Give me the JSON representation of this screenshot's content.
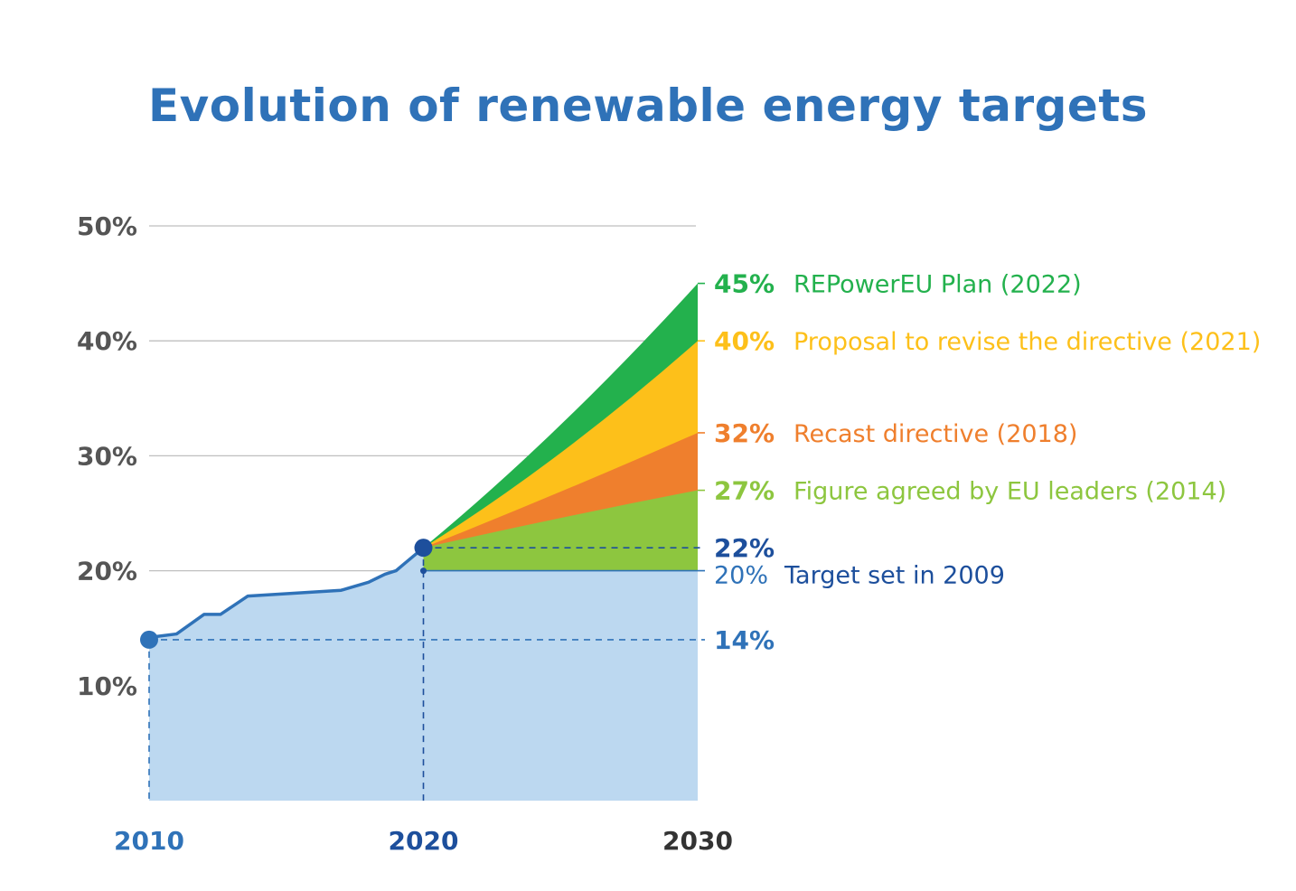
{
  "title": "Evolution of renewable energy targets",
  "chart_data": {
    "type": "area",
    "ylim": [
      0,
      50
    ],
    "xlim": [
      2010,
      2030
    ],
    "y_ticks": [
      "10%",
      "20%",
      "30%",
      "40%",
      "50%"
    ],
    "y_tick_values": [
      10,
      20,
      30,
      40,
      50
    ],
    "x_ticks": [
      "2010",
      "2020",
      "2030"
    ],
    "x_tick_values": [
      2010,
      2020,
      2030
    ],
    "grid": true,
    "actual_share": {
      "x": [
        2010,
        2011,
        2012,
        2012.6,
        2013.6,
        2015,
        2017,
        2018,
        2018.6,
        2019,
        2019.3,
        2020
      ],
      "y": [
        14.2,
        14.5,
        16.2,
        16.2,
        17.8,
        18.0,
        18.3,
        19.0,
        19.7,
        20.0,
        20.6,
        22.0
      ]
    },
    "baseline_target": {
      "value": 20,
      "label": "20%",
      "name": "Target set in 2009",
      "color": "#2f72b8"
    },
    "markers": [
      {
        "x": 2010,
        "y": 14,
        "label": "14%",
        "color": "#2f72b8"
      },
      {
        "x": 2020,
        "y": 22,
        "label": "22%",
        "color": "#1d4f9c"
      }
    ],
    "series": [
      {
        "label": "27%",
        "name": "Figure agreed by EU leaders",
        "year": "(2014)",
        "value": 27,
        "color": "#8dc63f",
        "mid": 24.8
      },
      {
        "label": "32%",
        "name": "Recast directive",
        "year": "(2018)",
        "value": 32,
        "color": "#ef7f2d",
        "mid": 27
      },
      {
        "label": "40%",
        "name": "Proposal to revise the directive",
        "year": "(2021)",
        "value": 40,
        "color": "#fdc01a",
        "mid": 30
      },
      {
        "label": "45%",
        "name": "REPowerEU Plan",
        "year": "(2022)",
        "value": 45,
        "color": "#23b14d",
        "mid": 32.5
      }
    ],
    "colors": {
      "area_fill": "#bcd8f0",
      "line": "#2f72b8",
      "grid": "#bfbfbf",
      "tick_text": "#555555",
      "year_2010": "#2f72b8",
      "year_2020": "#1d4f9c",
      "year_2030": "#333333"
    }
  }
}
